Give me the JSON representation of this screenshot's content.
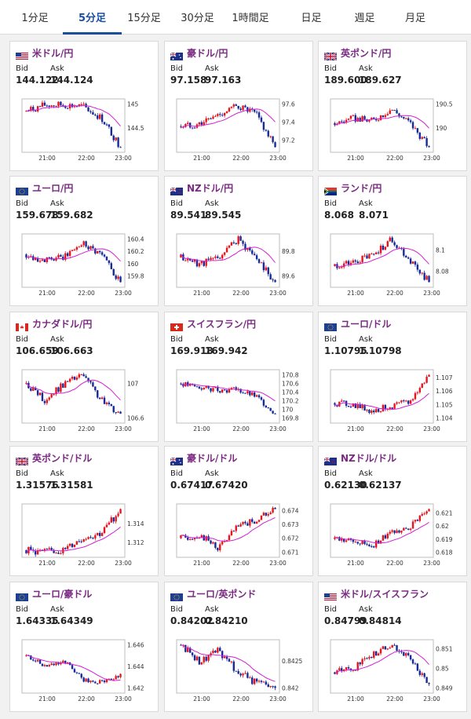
{
  "tabs": [
    {
      "label": "1分足",
      "active": false
    },
    {
      "label": "5分足",
      "active": true
    },
    {
      "label": "15分足",
      "active": false
    },
    {
      "label": "30分足",
      "active": false
    },
    {
      "label": "1時間足",
      "active": false
    },
    {
      "label": "日足",
      "active": false
    },
    {
      "label": "週足",
      "active": false
    },
    {
      "label": "月足",
      "active": false
    }
  ],
  "labels": {
    "bid": "Bid",
    "ask": "Ask"
  },
  "colors": {
    "up": "#e8141d",
    "down": "#162a9a",
    "ma": "#d21fd2",
    "pair": "#7a2a82",
    "tab_active": "#1a4fa0"
  },
  "cards": [
    {
      "pair": "米ドル/円",
      "flag": "us-flag-icon",
      "bid": "144.122",
      "ask": "144.124",
      "chart_data": {
        "type": "candlestick",
        "x_ticks": [
          "21:00",
          "22:00",
          "23:00"
        ],
        "y_ticks": [
          "145",
          "144.5"
        ],
        "pattern": [
          144.85,
          144.98,
          144.98,
          144.95,
          144.7,
          144.1
        ]
      }
    },
    {
      "pair": "豪ドル/円",
      "flag": "au-flag-icon",
      "bid": "97.158",
      "ask": "97.163",
      "chart_data": {
        "type": "candlestick",
        "x_ticks": [
          "21:00",
          "22:00",
          "23:00"
        ],
        "y_ticks": [
          "97.6",
          "97.4",
          "97.2"
        ],
        "pattern": [
          97.35,
          97.38,
          97.48,
          97.58,
          97.48,
          97.12
        ]
      }
    },
    {
      "pair": "英ポンド/円",
      "flag": "uk-flag-icon",
      "bid": "189.600",
      "ask": "189.627",
      "chart_data": {
        "type": "candlestick",
        "x_ticks": [
          "21:00",
          "22:00",
          "23:00"
        ],
        "y_ticks": [
          "190.5",
          "190"
        ],
        "pattern": [
          190.1,
          190.2,
          190.15,
          190.4,
          190.1,
          189.6
        ]
      }
    },
    {
      "pair": "ユーロ/円",
      "flag": "eu-flag-icon",
      "bid": "159.678",
      "ask": "159.682",
      "chart_data": {
        "type": "candlestick",
        "x_ticks": [
          "21:00",
          "22:00",
          "23:00"
        ],
        "y_ticks": [
          "160.4",
          "160.2",
          "160",
          "159.8"
        ],
        "pattern": [
          160.15,
          160.05,
          160.1,
          160.35,
          160.15,
          159.7
        ]
      }
    },
    {
      "pair": "NZドル/円",
      "flag": "nz-flag-icon",
      "bid": "89.541",
      "ask": "89.545",
      "chart_data": {
        "type": "candlestick",
        "x_ticks": [
          "21:00",
          "22:00",
          "23:00"
        ],
        "y_ticks": [
          "89.8",
          "89.6"
        ],
        "pattern": [
          89.75,
          89.7,
          89.75,
          89.9,
          89.75,
          89.55
        ]
      }
    },
    {
      "pair": "ランド/円",
      "flag": "za-flag-icon",
      "bid": "8.068",
      "ask": "8.071",
      "chart_data": {
        "type": "candlestick",
        "x_ticks": [
          "21:00",
          "22:00",
          "23:00"
        ],
        "y_ticks": [
          "8.1",
          "8.08"
        ],
        "pattern": [
          8.085,
          8.088,
          8.095,
          8.11,
          8.09,
          8.07
        ]
      }
    },
    {
      "pair": "カナダドル/円",
      "flag": "ca-flag-icon",
      "bid": "106.659",
      "ask": "106.663",
      "chart_data": {
        "type": "candlestick",
        "x_ticks": [
          "21:00",
          "22:00",
          "23:00"
        ],
        "y_ticks": [
          "107",
          "106.6"
        ],
        "pattern": [
          107.0,
          106.8,
          107.0,
          107.1,
          106.8,
          106.65
        ]
      }
    },
    {
      "pair": "スイスフラン/円",
      "flag": "ch-flag-icon",
      "bid": "169.918",
      "ask": "169.942",
      "chart_data": {
        "type": "candlestick",
        "x_ticks": [
          "21:00",
          "22:00",
          "23:00"
        ],
        "y_ticks": [
          "170.8",
          "170.6",
          "170.4",
          "170.2",
          "170",
          "169.8"
        ],
        "pattern": [
          170.6,
          170.5,
          170.45,
          170.45,
          170.3,
          169.9
        ]
      }
    },
    {
      "pair": "ユーロ/ドル",
      "flag": "eu-flag-icon",
      "bid": "1.10795",
      "ask": "1.10798",
      "chart_data": {
        "type": "candlestick",
        "x_ticks": [
          "21:00",
          "22:00",
          "23:00"
        ],
        "y_ticks": [
          "1.107",
          "1.106",
          "1.105",
          "1.104"
        ],
        "pattern": [
          1.1051,
          1.105,
          1.1045,
          1.1049,
          1.1052,
          1.1072
        ]
      }
    },
    {
      "pair": "英ポンド/ドル",
      "flag": "uk-flag-icon",
      "bid": "1.31576",
      "ask": "1.31581",
      "chart_data": {
        "type": "candlestick",
        "x_ticks": [
          "21:00",
          "22:00",
          "23:00"
        ],
        "y_ticks": [
          "1.314",
          "1.312"
        ],
        "pattern": [
          1.3112,
          1.311,
          1.3112,
          1.3125,
          1.313,
          1.3155
        ]
      }
    },
    {
      "pair": "豪ドル/ドル",
      "flag": "au-flag-icon",
      "bid": "0.67417",
      "ask": "0.67420",
      "chart_data": {
        "type": "candlestick",
        "x_ticks": [
          "21:00",
          "22:00",
          "23:00"
        ],
        "y_ticks": [
          "0.674",
          "0.673",
          "0.672",
          "0.671"
        ],
        "pattern": [
          0.672,
          0.6722,
          0.6713,
          0.6728,
          0.6733,
          0.6741
        ]
      }
    },
    {
      "pair": "NZドル/ドル",
      "flag": "nz-flag-icon",
      "bid": "0.62130",
      "ask": "0.62137",
      "chart_data": {
        "type": "candlestick",
        "x_ticks": [
          "21:00",
          "22:00",
          "23:00"
        ],
        "y_ticks": [
          "0.621",
          "0.62",
          "0.619",
          "0.618"
        ],
        "pattern": [
          0.619,
          0.6188,
          0.6185,
          0.6195,
          0.62,
          0.6213
        ]
      }
    },
    {
      "pair": "ユーロ/豪ドル",
      "flag": "eu-flag-icon",
      "bid": "1.64335",
      "ask": "1.64349",
      "chart_data": {
        "type": "candlestick",
        "x_ticks": [
          "21:00",
          "22:00",
          "23:00"
        ],
        "y_ticks": [
          "1.646",
          "1.644",
          "1.642"
        ],
        "pattern": [
          1.645,
          1.644,
          1.6445,
          1.6428,
          1.6425,
          1.6433
        ]
      }
    },
    {
      "pair": "ユーロ/英ポンド",
      "flag": "eu-flag-icon",
      "bid": "0.84202",
      "ask": "0.84210",
      "chart_data": {
        "type": "candlestick",
        "x_ticks": [
          "21:00",
          "22:00",
          "23:00"
        ],
        "y_ticks": [
          "0.8425",
          "0.842"
        ],
        "pattern": [
          0.8428,
          0.8425,
          0.8427,
          0.8423,
          0.8421,
          0.842
        ]
      }
    },
    {
      "pair": "米ドル/スイスフラン",
      "flag": "us-flag-icon",
      "bid": "0.84799",
      "ask": "0.84814",
      "chart_data": {
        "type": "candlestick",
        "x_ticks": [
          "21:00",
          "22:00",
          "23:00"
        ],
        "y_ticks": [
          "0.851",
          "0.85",
          "0.849"
        ],
        "pattern": [
          0.8498,
          0.85,
          0.8507,
          0.8512,
          0.8505,
          0.8492
        ]
      }
    }
  ]
}
